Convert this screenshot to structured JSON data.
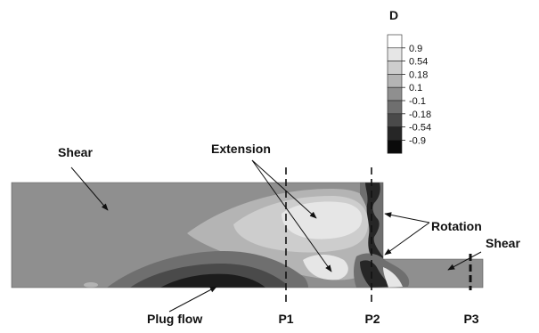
{
  "legend": {
    "title": "D",
    "levels": [
      "0.9",
      "0.54",
      "0.18",
      "0.1",
      "-0.1",
      "-0.18",
      "-0.54",
      "-0.9"
    ],
    "colors": [
      "#ffffff",
      "#e6e6e6",
      "#cdcdcd",
      "#b4b4b4",
      "#8f8f8f",
      "#6f6f6f",
      "#4a4a4a",
      "#262626",
      "#0a0a0a"
    ]
  },
  "annotations": {
    "shear_left": "Shear",
    "extension": "Extension",
    "rotation": "Rotation",
    "shear_right": "Shear",
    "plug_flow": "Plug flow"
  },
  "sections": {
    "p1": "P1",
    "p2": "P2",
    "p3": "P3"
  }
}
